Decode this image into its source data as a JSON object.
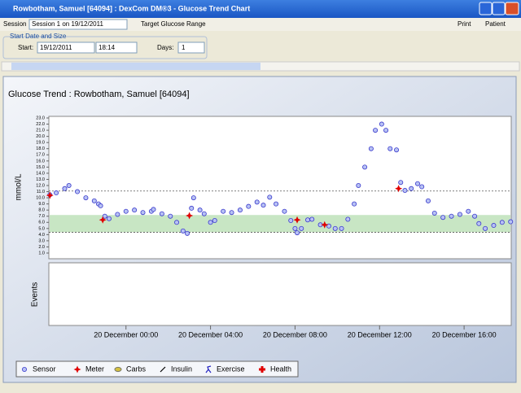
{
  "window": {
    "title": "Rowbotham, Samuel [64094] : DexCom DM®3 - Glucose Trend Chart"
  },
  "toolbar": {
    "session_label": "Session",
    "session": "Session 1 on 19/12/2011",
    "target": "Target Glucose Range",
    "print": "Print",
    "patient": "Patient"
  },
  "start_group": {
    "title": "Start Date and Size",
    "start_label": "Start:",
    "date": "19/12/2011",
    "time": "18:14",
    "days_label": "Days:",
    "days": "1"
  },
  "chart_data": {
    "type": "scatter",
    "title": "Glucose Trend : Rowbotham, Samuel [64094]",
    "y_label": "mmol/L",
    "events_label": "Events",
    "xlim": [
      -3.65,
      18.23
    ],
    "xticks": [
      {
        "value": 0,
        "label": "20 December 00:00"
      },
      {
        "value": 4,
        "label": "20 December 04:00"
      },
      {
        "value": 8,
        "label": "20 December 08:00"
      },
      {
        "value": 12,
        "label": "20 December 12:00"
      },
      {
        "value": 16,
        "label": "20 December 16:00"
      }
    ],
    "ylim": [
      1,
      23
    ],
    "yticks": [
      {
        "value": 1,
        "label": "1.0"
      },
      {
        "value": 2,
        "label": "2.0"
      },
      {
        "value": 3,
        "label": "3.0"
      },
      {
        "value": 4,
        "label": "4.0"
      },
      {
        "value": 5,
        "label": "5.0"
      },
      {
        "value": 6,
        "label": "6.0"
      },
      {
        "value": 7,
        "label": "7.0"
      },
      {
        "value": 8,
        "label": "8.0"
      },
      {
        "value": 9,
        "label": "9.0"
      },
      {
        "value": 10,
        "label": "10.0"
      },
      {
        "value": 11,
        "label": "11.0"
      },
      {
        "value": 12,
        "label": "12.0"
      },
      {
        "value": 13,
        "label": "13.0"
      },
      {
        "value": 14,
        "label": "14.0"
      },
      {
        "value": 15,
        "label": "15.0"
      },
      {
        "value": 16,
        "label": "16.0"
      },
      {
        "value": 17,
        "label": "17.0"
      },
      {
        "value": 18,
        "label": "18.0"
      },
      {
        "value": 19,
        "label": "19.0"
      },
      {
        "value": 20,
        "label": "20.0"
      },
      {
        "value": 21,
        "label": "21.0"
      },
      {
        "value": 22,
        "label": "22.0"
      },
      {
        "value": 23,
        "label": "23.0"
      }
    ],
    "target_range": [
      4.4,
      7.2
    ],
    "limit_lines": [
      4.4,
      11.1
    ],
    "series": [
      {
        "name": "Sensor",
        "color": "#3a3acc",
        "x": [
          -3.6,
          -3.3,
          -2.9,
          -2.7,
          -2.3,
          -1.9,
          -1.5,
          -1.3,
          -1.2,
          -1.0,
          -0.8,
          -0.4,
          0.0,
          0.4,
          0.8,
          1.2,
          1.3,
          1.7,
          2.1,
          2.4,
          2.7,
          2.9,
          3.1,
          3.2,
          3.5,
          3.7,
          4.0,
          4.2,
          4.6,
          5.0,
          5.4,
          5.8,
          6.2,
          6.5,
          6.8,
          7.1,
          7.5,
          7.8,
          8.0,
          8.1,
          8.3,
          8.6,
          8.8,
          9.2,
          9.6,
          9.9,
          10.2,
          10.5,
          10.8,
          11.0,
          11.3,
          11.6,
          11.8,
          12.1,
          12.3,
          12.5,
          12.8,
          13.0,
          13.2,
          13.5,
          13.8,
          14.0,
          14.3,
          14.6,
          15.0,
          15.4,
          15.8,
          16.2,
          16.5,
          16.7,
          17.0,
          17.4,
          17.8,
          18.2
        ],
        "values": [
          10.5,
          10.8,
          11.5,
          12.0,
          11.0,
          10.0,
          9.5,
          9.0,
          8.7,
          7.0,
          6.6,
          7.3,
          7.8,
          8.0,
          7.6,
          7.8,
          8.1,
          7.4,
          7.0,
          6.0,
          4.6,
          4.2,
          8.3,
          10.0,
          8.0,
          7.4,
          6.0,
          6.3,
          7.8,
          7.6,
          8.0,
          8.6,
          9.3,
          8.8,
          10.1,
          9.0,
          7.8,
          6.3,
          5.0,
          4.3,
          5.0,
          6.4,
          6.5,
          5.6,
          5.4,
          5.0,
          5.0,
          6.5,
          9.0,
          12.0,
          15.0,
          18.0,
          21.0,
          22.0,
          21.0,
          18.0,
          17.8,
          12.5,
          11.2,
          11.5,
          12.3,
          11.8,
          9.5,
          7.5,
          6.8,
          7.0,
          7.3,
          7.8,
          7.0,
          5.8,
          5.0,
          5.5,
          6.0,
          6.1
        ]
      },
      {
        "name": "Meter",
        "color": "#e00000",
        "x": [
          -3.6,
          -1.1,
          3.0,
          8.1,
          9.4,
          12.9
        ],
        "values": [
          10.4,
          6.4,
          7.1,
          6.4,
          5.6,
          11.5
        ]
      },
      {
        "name": "Carbs",
        "color": "#d4c040",
        "x": [],
        "values": []
      },
      {
        "name": "Insulin",
        "color": "#000000",
        "x": [],
        "values": []
      },
      {
        "name": "Exercise",
        "color": "#2020c0",
        "x": [],
        "values": []
      },
      {
        "name": "Health",
        "color": "#e00000",
        "x": [],
        "values": []
      }
    ]
  }
}
